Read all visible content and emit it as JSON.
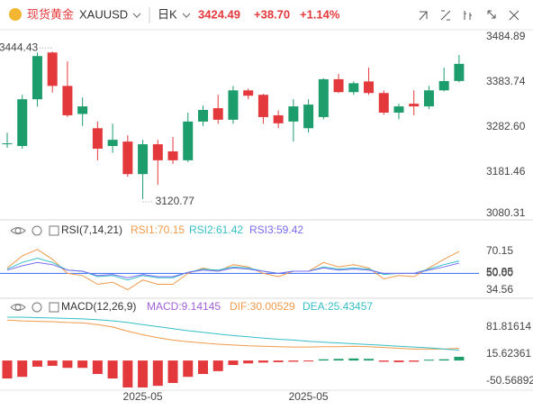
{
  "header": {
    "name": "现货黄金",
    "symbol": "XAUUSD",
    "period": "日K",
    "price": "3424.49",
    "change": "+38.70",
    "change_pct": "+1.14%"
  },
  "chart_data": [
    {
      "type": "candlestick",
      "categories": [
        null,
        null,
        null,
        null,
        null,
        null,
        null,
        null,
        null,
        "2025-05",
        null,
        null,
        null,
        null,
        null,
        null,
        null,
        null,
        null,
        null,
        "2025-05",
        null,
        null,
        null,
        null,
        null,
        null,
        null,
        null,
        null,
        null
      ],
      "open": [
        3244,
        3240,
        3345,
        3450,
        3375,
        3312,
        3280,
        3240,
        3250,
        3177,
        3244,
        3228,
        3208,
        3295,
        3325,
        3299,
        3365,
        3355,
        3309,
        3295,
        3280,
        3305,
        3390,
        3361,
        3385,
        3359,
        3315,
        3335,
        3329,
        3365,
        3386
      ],
      "high": [
        3270,
        3355,
        3450,
        3452,
        3430,
        3349,
        3295,
        3290,
        3264,
        3254,
        3254,
        3260,
        3315,
        3331,
        3355,
        3375,
        3369,
        3357,
        3320,
        3345,
        3345,
        3392,
        3402,
        3385,
        3416,
        3365,
        3335,
        3365,
        3375,
        3416,
        3444.43
      ],
      "low": [
        3236,
        3234,
        3329,
        3360,
        3305,
        3285,
        3208,
        3225,
        3171,
        3120.77,
        3153,
        3200,
        3204,
        3285,
        3290,
        3290,
        3345,
        3290,
        3280,
        3250,
        3270,
        3300,
        3359,
        3355,
        3355,
        3310,
        3300,
        3309,
        3323,
        3363,
        3383
      ],
      "close": [
        3246,
        3345,
        3442,
        3375,
        3309,
        3329,
        3234,
        3254,
        3177,
        3244,
        3208,
        3208,
        3295,
        3321,
        3299,
        3365,
        3353,
        3305,
        3291,
        3329,
        3333,
        3390,
        3361,
        3381,
        3359,
        3315,
        3329,
        3329,
        3365,
        3385.79,
        3424.49
      ],
      "colors": {
        "up": "#1d9d6c",
        "down": "#e4393c"
      },
      "annotations": [
        {
          "text": "3444.43"
        },
        {
          "text": "3120.77"
        }
      ],
      "ylim": [
        3076.25,
        3501.1
      ],
      "yticks": [
        3484.89,
        3383.74,
        {
          "value": 3282.6,
          "label": "3282.60"
        },
        3181.46,
        3080.31
      ],
      "grid": false
    },
    {
      "type": "line",
      "title": "RSI(7,14,21)",
      "series": [
        {
          "name": "RSI1:70.15",
          "color": "#f29a4a",
          "values": [
            55,
            66,
            72,
            63,
            50,
            48,
            40,
            42,
            35,
            44,
            40,
            40,
            50,
            55,
            52,
            58,
            56,
            50,
            47,
            52,
            52,
            60,
            56,
            58,
            55,
            45,
            48,
            47,
            55,
            63,
            70.15
          ]
        },
        {
          "name": "RSI2:61.42",
          "color": "#35bfc7",
          "values": [
            54,
            60,
            64,
            60,
            53,
            52,
            47,
            48,
            44,
            48,
            46,
            46,
            51,
            54,
            53,
            56,
            55,
            52,
            50,
            52,
            52,
            56,
            54,
            55,
            54,
            49,
            50,
            50,
            54,
            58,
            61.42
          ]
        },
        {
          "name": "RSI3:59.42",
          "color": "#7a6cf0",
          "values": [
            53,
            57,
            60,
            58,
            53,
            52,
            48,
            49,
            46,
            49,
            47,
            47,
            51,
            53,
            52,
            55,
            54,
            52,
            50,
            52,
            52,
            55,
            53,
            54,
            53,
            50,
            50,
            50,
            53,
            56,
            59.42
          ]
        }
      ],
      "reference_line": {
        "value": 50,
        "color": "#4a7cf7"
      },
      "ylim": [
        28.0,
        94.2
      ],
      "yticks": [
        70.15,
        50.85,
        {
          "value": 50,
          "label": "50.00"
        },
        34.56
      ],
      "grid": false
    },
    {
      "type": "combo",
      "title": "MACD(12,26,9)",
      "bars": {
        "name": "MACD:9.14145",
        "color": "#a061d8",
        "values": [
          -44,
          -40,
          -15,
          -13,
          -18,
          -18,
          -33,
          -44,
          -66,
          -66,
          -62,
          -55,
          -40,
          -33,
          -26,
          -11,
          -7,
          -5,
          -4,
          -3,
          -2,
          3,
          4,
          5,
          4,
          -3,
          -4,
          -3,
          2,
          3,
          9.14145
        ]
      },
      "colors": {
        "up": "#1d9d6c",
        "down": "#e4393c"
      },
      "series": [
        {
          "name": "DIF:30.00529",
          "color": "#f29a4a",
          "values": [
            99,
            97,
            96,
            95,
            93,
            92,
            88,
            82,
            72,
            63,
            56,
            50,
            46,
            43,
            40,
            38,
            36,
            35,
            34,
            33,
            33,
            34,
            34,
            35,
            34,
            32,
            30,
            28,
            28,
            28,
            30.00529
          ]
        },
        {
          "name": "DEA:25.43457",
          "color": "#35bfc7",
          "values": [
            106,
            106,
            105,
            104,
            103,
            102,
            100,
            97,
            93,
            88,
            83,
            78,
            73,
            69,
            65,
            61,
            58,
            55,
            52,
            50,
            47,
            45,
            43,
            41,
            39,
            37,
            35,
            33,
            31,
            28,
            25.43457
          ]
        }
      ],
      "ylim": [
        -70.4,
        143.6
      ],
      "yticks": [
        81.81614,
        15.62361,
        -50.56892
      ],
      "grid": false
    }
  ]
}
